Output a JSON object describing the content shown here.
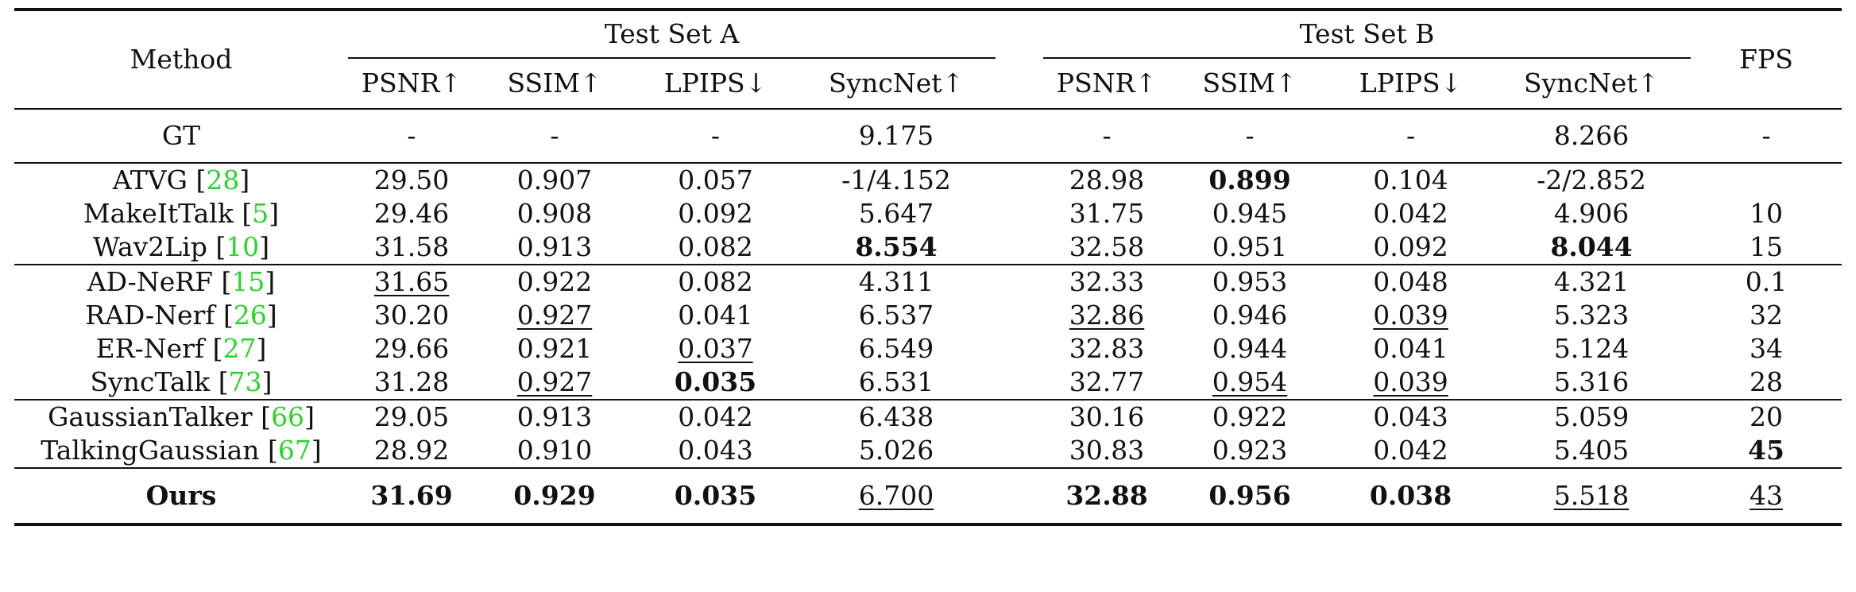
{
  "headers": {
    "method": "Method",
    "group_a": "Test Set A",
    "group_b": "Test Set B",
    "fps": "FPS",
    "metrics": [
      "PSNR↑",
      "SSIM↑",
      "LPIPS↓",
      "SyncNet↑",
      "PSNR↑",
      "SSIM↑",
      "LPIPS↓",
      "SyncNet↑"
    ]
  },
  "rows": [
    {
      "method": "GT",
      "ref": "",
      "cells": [
        "-",
        "-",
        "-",
        "9.175",
        "-",
        "-",
        "-",
        "8.266",
        "-"
      ]
    },
    {
      "method": "ATVG",
      "ref": "28",
      "cells": [
        "29.50",
        "0.907",
        "0.057",
        "-1/4.152",
        "28.98",
        "0.899",
        "0.104",
        "-2/2.852",
        ""
      ]
    },
    {
      "method": "MakeItTalk",
      "ref": "5",
      "cells": [
        "29.46",
        "0.908",
        "0.092",
        "5.647",
        "31.75",
        "0.945",
        "0.042",
        "4.906",
        "10"
      ]
    },
    {
      "method": "Wav2Lip",
      "ref": "10",
      "cells": [
        "31.58",
        "0.913",
        "0.082",
        "8.554",
        "32.58",
        "0.951",
        "0.092",
        "8.044",
        "15"
      ]
    },
    {
      "method": "AD-NeRF",
      "ref": "15",
      "cells": [
        "31.65",
        "0.922",
        "0.082",
        "4.311",
        "32.33",
        "0.953",
        "0.048",
        "4.321",
        "0.1"
      ]
    },
    {
      "method": "RAD-Nerf",
      "ref": "26",
      "cells": [
        "30.20",
        "0.927",
        "0.041",
        "6.537",
        "32.86",
        "0.946",
        "0.039",
        "5.323",
        "32"
      ]
    },
    {
      "method": "ER-Nerf",
      "ref": "27",
      "cells": [
        "29.66",
        "0.921",
        "0.037",
        "6.549",
        "32.83",
        "0.944",
        "0.041",
        "5.124",
        "34"
      ]
    },
    {
      "method": "SyncTalk",
      "ref": "73",
      "cells": [
        "31.28",
        "0.927",
        "0.035",
        "6.531",
        "32.77",
        "0.954",
        "0.039",
        "5.316",
        "28"
      ]
    },
    {
      "method": "GaussianTalker",
      "ref": "66",
      "cells": [
        "29.05",
        "0.913",
        "0.042",
        "6.438",
        "30.16",
        "0.922",
        "0.043",
        "5.059",
        "20"
      ]
    },
    {
      "method": "TalkingGaussian",
      "ref": "67",
      "cells": [
        "28.92",
        "0.910",
        "0.043",
        "5.026",
        "30.83",
        "0.923",
        "0.042",
        "5.405",
        "45"
      ]
    },
    {
      "method": "Ours",
      "ref": "",
      "cells": [
        "31.69",
        "0.929",
        "0.035",
        "6.700",
        "32.88",
        "0.956",
        "0.038",
        "5.518",
        "43"
      ]
    }
  ],
  "colors": {
    "citation": "#27d627",
    "text": "#111111"
  }
}
